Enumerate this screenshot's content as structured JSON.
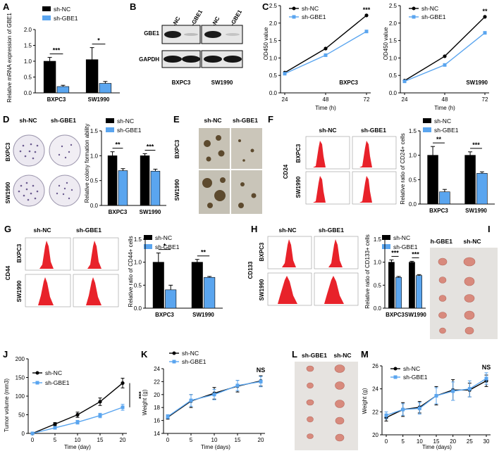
{
  "colors": {
    "nc": "#000000",
    "gbe1": "#5aa5ef",
    "flow": "#e8222a",
    "tumor": "#d88a7d"
  },
  "legend": {
    "nc": "sh-NC",
    "gbe1": "sh-GBE1",
    "gbe1_alt": "Sh-GBE1"
  },
  "panels": {
    "A": {
      "label": "A",
      "ylabel": "Relative mRNA expression of GBE1"
    },
    "B": {
      "label": "B",
      "rows": [
        "GBE1",
        "GAPDH"
      ],
      "cells": [
        "BXPC3",
        "SW1990"
      ]
    },
    "C": {
      "label": "C",
      "ylabel": "OD450 value",
      "xlabel": "Time (h)"
    },
    "D": {
      "label": "D",
      "rows": [
        "BXPC3",
        "SW1990"
      ],
      "ylabel": "Relative colony formation ability"
    },
    "E": {
      "label": "E",
      "rows": [
        "BXPC3",
        "SW1990"
      ]
    },
    "F": {
      "label": "F",
      "marker": "CD24",
      "ylabel": "Relative ratio of CD24+ cells"
    },
    "G": {
      "label": "G",
      "marker": "CD44",
      "ylabel": "Relative ratio of CD44+ cells"
    },
    "H": {
      "label": "H",
      "marker": "CD133",
      "ylabel": "Relative ratio of CD133+ cells"
    },
    "I": {
      "label": "I"
    },
    "J": {
      "label": "J",
      "ylabel": "Tumor volume (mm3)",
      "xlabel": "Time (day)"
    },
    "K": {
      "label": "K",
      "ylabel": "Weight (g)",
      "xlabel": "Time (days)"
    },
    "L": {
      "label": "L"
    },
    "M": {
      "label": "M",
      "ylabel": "Weight (g)",
      "xlabel": "Time (days)"
    }
  },
  "chart_data": [
    {
      "id": "A",
      "type": "bar",
      "categories": [
        "BXPC3",
        "SW1990"
      ],
      "series": [
        {
          "name": "sh-NC",
          "values": [
            1.0,
            1.05
          ],
          "err": [
            0.12,
            0.38
          ]
        },
        {
          "name": "sh-GBE1",
          "values": [
            0.2,
            0.3
          ],
          "err": [
            0.04,
            0.06
          ]
        }
      ],
      "ylim": [
        0,
        2.0
      ],
      "yticks": [
        "0.0",
        "0.5",
        "1.0",
        "1.5",
        "2.0"
      ],
      "sig": [
        "***",
        "*"
      ]
    },
    {
      "id": "C1",
      "type": "line",
      "x": [
        24,
        48,
        72
      ],
      "xticks": [
        "24",
        "48",
        "72"
      ],
      "cell": "BXPC3",
      "series": [
        {
          "name": "sh-NC",
          "values": [
            0.58,
            1.27,
            2.22
          ]
        },
        {
          "name": "sh-GBE1",
          "values": [
            0.55,
            1.08,
            1.76
          ]
        }
      ],
      "ylim": [
        0,
        2.5
      ],
      "yticks": [
        "0.0",
        "0.5",
        "1.0",
        "1.5",
        "2.0",
        "2.5"
      ],
      "sig": "***"
    },
    {
      "id": "C2",
      "type": "line",
      "x": [
        24,
        48,
        72
      ],
      "xticks": [
        "24",
        "48",
        "72"
      ],
      "cell": "SW1990",
      "series": [
        {
          "name": "sh-NC",
          "values": [
            0.35,
            1.05,
            2.18
          ]
        },
        {
          "name": "sh-GBE1",
          "values": [
            0.33,
            0.8,
            1.72
          ]
        }
      ],
      "ylim": [
        0,
        2.5
      ],
      "yticks": [
        "0.0",
        "0.5",
        "1.0",
        "1.5",
        "2.0",
        "2.5"
      ],
      "sig": "**"
    },
    {
      "id": "D",
      "type": "bar",
      "categories": [
        "BXPC3",
        "SW1990"
      ],
      "series": [
        {
          "name": "sh-NC",
          "values": [
            1.0,
            1.0
          ],
          "err": [
            0.08,
            0.04
          ]
        },
        {
          "name": "sh-GBE1",
          "values": [
            0.7,
            0.69
          ],
          "err": [
            0.04,
            0.04
          ]
        }
      ],
      "ylim": [
        0,
        1.5
      ],
      "yticks": [
        "0.0",
        "0.5",
        "1.0",
        "1.5"
      ],
      "sig": [
        "**",
        "***"
      ]
    },
    {
      "id": "F",
      "type": "bar",
      "categories": [
        "BXPC3",
        "SW1990"
      ],
      "series": [
        {
          "name": "sh-NC",
          "values": [
            1.0,
            1.0
          ],
          "err": [
            0.18,
            0.07
          ]
        },
        {
          "name": "sh-GBE1",
          "values": [
            0.25,
            0.63
          ],
          "err": [
            0.05,
            0.03
          ]
        }
      ],
      "ylim": [
        0,
        1.5
      ],
      "yticks": [
        "0.0",
        "0.5",
        "1.0",
        "1.5"
      ],
      "sig": [
        "**",
        "***"
      ]
    },
    {
      "id": "G",
      "type": "bar",
      "categories": [
        "BXPC3",
        "SW1990"
      ],
      "series": [
        {
          "name": "sh-NC",
          "values": [
            1.0,
            1.0
          ],
          "err": [
            0.2,
            0.06
          ]
        },
        {
          "name": "sh-GBE1",
          "values": [
            0.4,
            0.67
          ],
          "err": [
            0.1,
            0.02
          ]
        }
      ],
      "ylim": [
        0,
        1.5
      ],
      "yticks": [
        "0.0",
        "0.5",
        "1.0",
        "1.5"
      ],
      "sig": [
        "*",
        "**"
      ]
    },
    {
      "id": "H",
      "type": "bar",
      "categories": [
        "BXPC3",
        "SW1990"
      ],
      "series": [
        {
          "name": "sh-NC",
          "values": [
            1.0,
            1.0
          ],
          "err": [
            0.05,
            0.02
          ]
        },
        {
          "name": "sh-GBE1",
          "values": [
            0.67,
            0.71
          ],
          "err": [
            0.02,
            0.02
          ]
        }
      ],
      "ylim": [
        0,
        1.5
      ],
      "yticks": [
        "0.0",
        "0.5",
        "1.0",
        "1.5"
      ],
      "sig": [
        "***",
        "***"
      ]
    },
    {
      "id": "J",
      "type": "line",
      "x": [
        0,
        5,
        10,
        15,
        20
      ],
      "xticks": [
        "0",
        "5",
        "10",
        "15",
        "20"
      ],
      "series": [
        {
          "name": "sh-NC",
          "values": [
            0,
            25,
            50,
            85,
            135
          ],
          "err": [
            0,
            4,
            7,
            10,
            13
          ]
        },
        {
          "name": "sh-GBE1",
          "values": [
            0,
            15,
            30,
            48,
            70
          ],
          "err": [
            0,
            3,
            5,
            6,
            8
          ]
        }
      ],
      "ylim": [
        0,
        200
      ],
      "yticks": [
        "0",
        "50",
        "100",
        "150",
        "200"
      ],
      "sig": "***"
    },
    {
      "id": "K",
      "type": "line",
      "x": [
        0,
        5,
        10,
        15,
        20
      ],
      "xticks": [
        "0",
        "5",
        "10",
        "15",
        "20"
      ],
      "series": [
        {
          "name": "sh-NC",
          "values": [
            16.5,
            19.0,
            20.2,
            21.3,
            22.1
          ],
          "err": [
            0.3,
            1.0,
            0.9,
            0.9,
            0.8
          ]
        },
        {
          "name": "sh-GBE1",
          "values": [
            16.6,
            19.1,
            20.0,
            21.4,
            22.0
          ],
          "err": [
            0.3,
            0.9,
            0.8,
            0.8,
            0.8
          ]
        }
      ],
      "ylim": [
        14,
        24
      ],
      "yticks": [
        "14",
        "16",
        "18",
        "20",
        "22",
        "24"
      ],
      "sig": "NS"
    },
    {
      "id": "M",
      "type": "line",
      "x": [
        0,
        5,
        10,
        15,
        20,
        25,
        30
      ],
      "xticks": [
        "0",
        "5",
        "10",
        "15",
        "20",
        "25",
        "30"
      ],
      "series": [
        {
          "name": "sh-NC",
          "values": [
            21.5,
            22.2,
            22.4,
            23.4,
            23.9,
            23.9,
            24.7
          ],
          "err": [
            0.3,
            0.6,
            0.5,
            0.8,
            0.9,
            0.6,
            0.5
          ]
        },
        {
          "name": "sh-GBE1",
          "values": [
            21.7,
            22.2,
            22.3,
            23.4,
            23.8,
            24.0,
            24.9
          ],
          "err": [
            0.3,
            0.5,
            0.5,
            0.7,
            0.8,
            0.7,
            0.5
          ]
        }
      ],
      "ylim": [
        20,
        26
      ],
      "yticks": [
        "20",
        "22",
        "24",
        "26"
      ],
      "sig": "NS"
    }
  ]
}
